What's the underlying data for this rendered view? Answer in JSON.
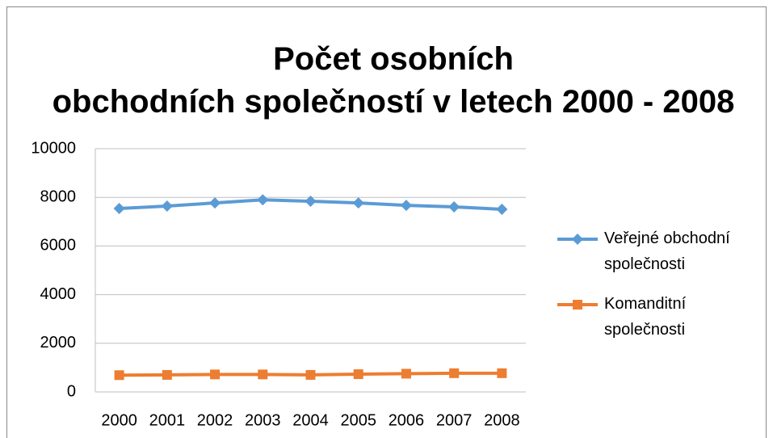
{
  "chart_data": {
    "type": "line",
    "title": "Počet osobních obchodních společností v letech 2000 - 2008",
    "categories": [
      "2000",
      "2001",
      "2002",
      "2003",
      "2004",
      "2005",
      "2006",
      "2007",
      "2008"
    ],
    "series": [
      {
        "name": "Veřejné obchodní společnosti",
        "color": "#5b9bd5",
        "marker": "diamond",
        "values": [
          7540,
          7640,
          7770,
          7900,
          7840,
          7770,
          7670,
          7610,
          7510
        ]
      },
      {
        "name": "Komanditní společnosti",
        "color": "#ed7d31",
        "marker": "square",
        "values": [
          690,
          700,
          720,
          720,
          700,
          730,
          750,
          770,
          770
        ]
      }
    ],
    "ylim": [
      0,
      10000
    ],
    "yticks": [
      0,
      2000,
      4000,
      6000,
      8000,
      10000
    ],
    "grid": true,
    "legend": "right"
  }
}
